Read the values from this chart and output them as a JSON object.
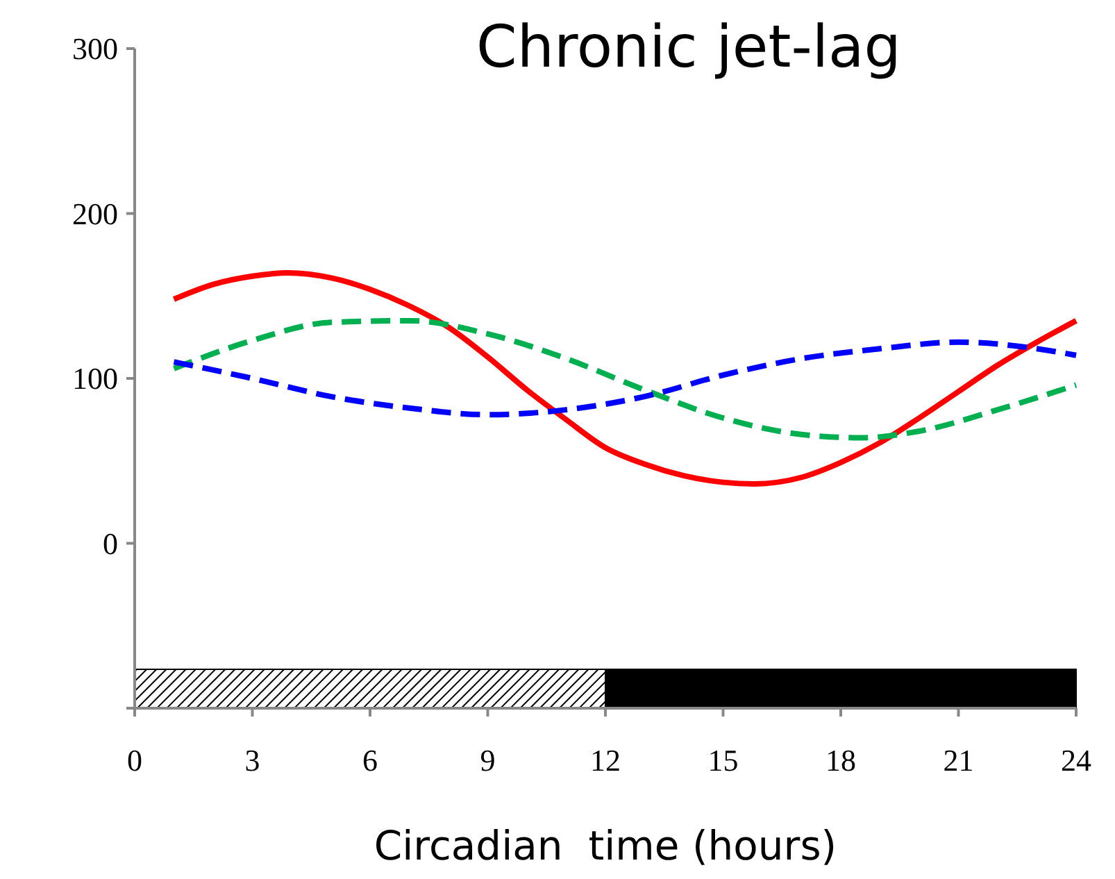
{
  "chart_data": {
    "type": "line",
    "title": "Chronic jet-lag",
    "xlabel": "Circadian  time (hours)",
    "xlim": [
      0,
      24
    ],
    "xticks": [
      0,
      3,
      6,
      9,
      12,
      15,
      18,
      21,
      24
    ],
    "ylim": [
      -100,
      300
    ],
    "yticks": [
      {
        "value": -100,
        "label": null
      },
      0,
      100,
      200,
      300
    ],
    "grid": false,
    "marker": "none",
    "bands": [
      {
        "axis": "x",
        "from": 0,
        "to": 12,
        "color": "#000000"
      },
      {
        "axis": "x",
        "from": 12,
        "to": 24,
        "color": "#000000"
      }
    ],
    "series": [
      {
        "color": "#ff0000",
        "line_style": "solid",
        "x": [
          1,
          2,
          3,
          3.9,
          5,
          6,
          7,
          8,
          9,
          10,
          11,
          12,
          13,
          14,
          15,
          15.8,
          17,
          18,
          19,
          20,
          21,
          22,
          23,
          24
        ],
        "values": [
          148,
          157,
          162,
          164,
          161,
          154,
          144,
          131,
          113,
          93,
          75,
          58,
          48,
          41,
          37,
          36,
          40,
          49,
          61,
          76,
          92,
          108,
          122,
          135
        ]
      },
      {
        "color": "#00b050",
        "line_style": "dashed",
        "x": [
          1,
          3,
          5,
          7,
          9,
          11,
          13,
          15,
          17,
          18.5,
          20,
          22,
          24
        ],
        "values": [
          106,
          123,
          134,
          135,
          127,
          112,
          93,
          76,
          66,
          64,
          68,
          81,
          96
        ]
      },
      {
        "color": "#0000ff",
        "line_style": "dashed",
        "x": [
          1,
          3,
          5,
          7,
          9,
          11,
          13,
          15,
          17,
          19,
          21,
          23,
          24
        ],
        "values": [
          110,
          100,
          89,
          82,
          78,
          81,
          89,
          102,
          112,
          118,
          122,
          118,
          114
        ]
      }
    ]
  }
}
